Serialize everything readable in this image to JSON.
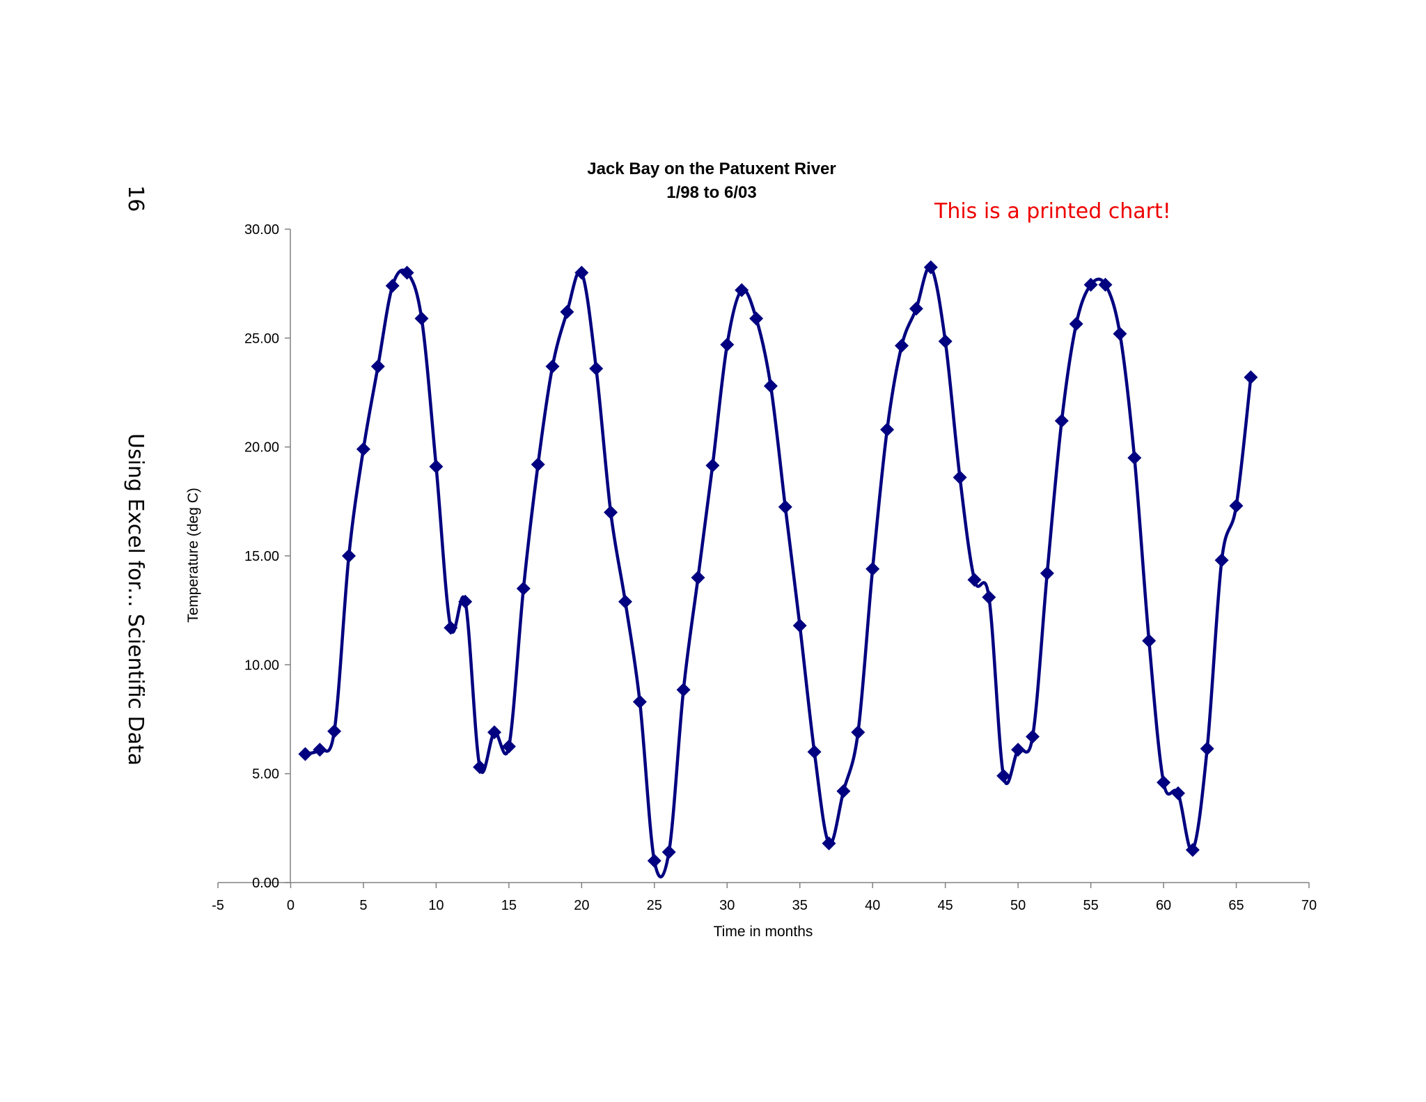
{
  "page": {
    "page_number": "16",
    "running_head": "Using Excel for... Scientific Data",
    "annotation": "This is a printed chart!",
    "annotation_color": "#ee0000"
  },
  "chart_data": {
    "type": "scatter",
    "title": "Jack Bay on the Patuxent River",
    "subtitle": "1/98 to 6/03",
    "xlabel": "Time in months",
    "ylabel": "Temperature (deg C)",
    "xlim": [
      -5,
      70
    ],
    "ylim": [
      0,
      30
    ],
    "x_ticks": [
      "-5",
      "0",
      "5",
      "10",
      "15",
      "20",
      "25",
      "30",
      "35",
      "40",
      "45",
      "50",
      "55",
      "60",
      "65",
      "70"
    ],
    "y_ticks": [
      "0.00",
      "5.00",
      "10.00",
      "15.00",
      "20.00",
      "25.00",
      "30.00"
    ],
    "grid": false,
    "legend": "none",
    "line_style": "smoothed line with diamond markers",
    "series_color": "#000080",
    "series": [
      {
        "x": [
          1,
          2,
          3,
          4,
          5,
          6,
          7,
          8,
          9,
          10,
          11,
          12,
          13,
          14,
          15,
          16,
          17,
          18,
          19,
          20,
          21,
          22,
          23,
          24,
          25,
          26,
          27,
          28,
          29,
          30,
          31,
          32,
          33,
          34,
          35,
          36,
          37,
          38,
          39,
          40,
          41,
          42,
          43,
          44,
          45,
          46,
          47,
          48,
          49,
          50,
          51,
          52,
          53,
          54,
          55,
          56,
          57,
          58,
          59,
          60,
          61,
          62,
          63,
          64,
          65,
          66
        ],
        "y": [
          5.9,
          6.1,
          6.95,
          15.0,
          19.9,
          23.7,
          27.4,
          28.0,
          25.9,
          19.1,
          11.7,
          12.9,
          5.3,
          6.9,
          6.25,
          13.5,
          19.2,
          23.7,
          26.2,
          28.0,
          23.6,
          17.0,
          12.9,
          8.3,
          1.0,
          1.4,
          8.85,
          14.0,
          19.15,
          24.7,
          27.2,
          25.9,
          22.8,
          17.25,
          11.8,
          6.0,
          1.8,
          4.2,
          6.9,
          14.4,
          20.8,
          24.65,
          26.35,
          28.25,
          24.85,
          18.6,
          13.9,
          13.1,
          4.9,
          6.1,
          6.7,
          14.2,
          21.2,
          25.65,
          27.45,
          27.45,
          25.2,
          19.5,
          11.1,
          4.6,
          4.1,
          1.5,
          6.15,
          14.8,
          17.3,
          23.2
        ]
      }
    ]
  }
}
